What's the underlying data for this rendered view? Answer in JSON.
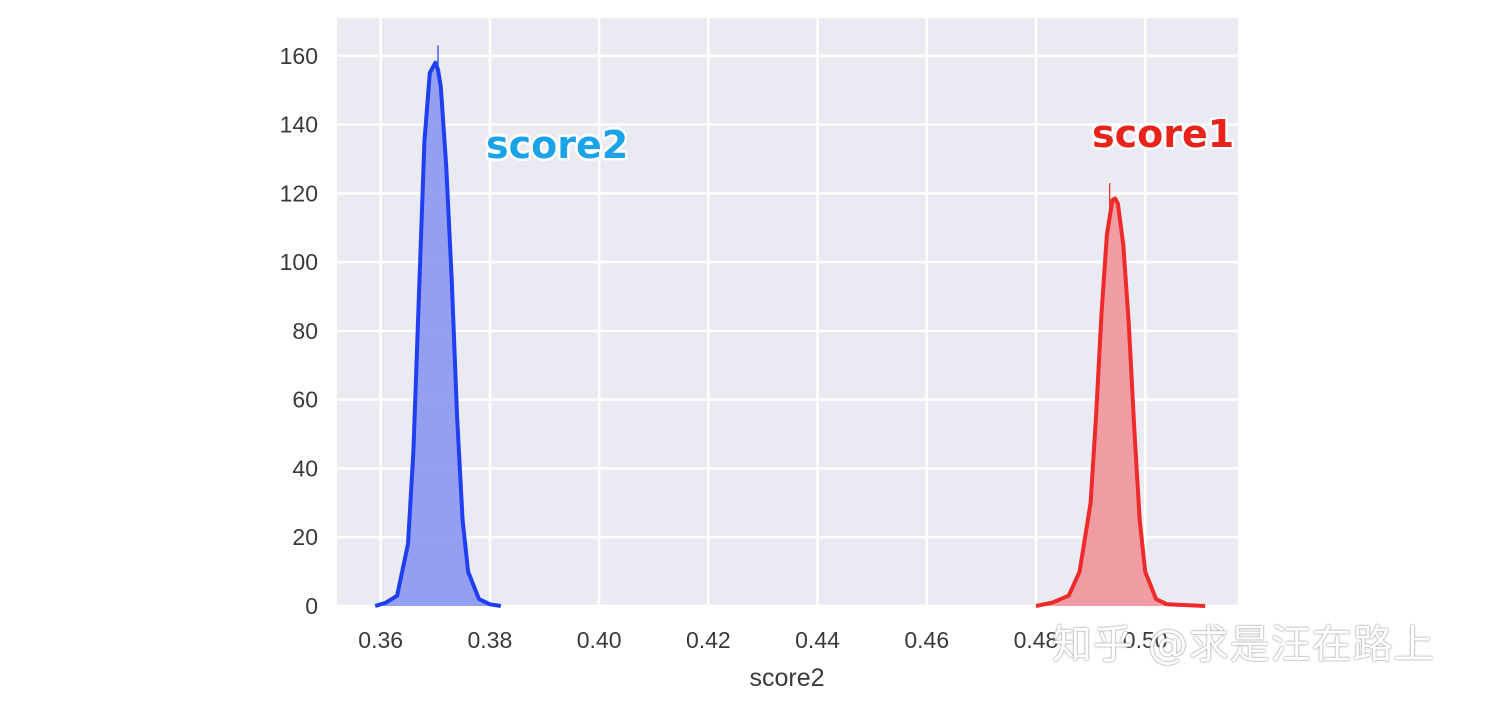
{
  "chart_data": {
    "type": "area",
    "xlabel": "score2",
    "ylabel": "",
    "xlim": [
      0.352,
      0.517
    ],
    "ylim": [
      0,
      171
    ],
    "xticks": [
      "0.36",
      "0.38",
      "0.40",
      "0.42",
      "0.44",
      "0.46",
      "0.48",
      "0.50"
    ],
    "yticks": [
      "0",
      "20",
      "40",
      "60",
      "80",
      "100",
      "120",
      "140",
      "160"
    ],
    "grid": true,
    "series": [
      {
        "name": "score2",
        "color": "#1f3ff0",
        "fill_color": "#8c97f2",
        "x": [
          0.359,
          0.361,
          0.363,
          0.365,
          0.366,
          0.367,
          0.368,
          0.369,
          0.37,
          0.3705,
          0.371,
          0.372,
          0.373,
          0.374,
          0.375,
          0.376,
          0.378,
          0.38,
          0.382
        ],
        "y": [
          0,
          1,
          3,
          18,
          45,
          90,
          135,
          155,
          158,
          156,
          151,
          128,
          95,
          55,
          25,
          10,
          2,
          0.5,
          0
        ],
        "peak_bin": {
          "x": 0.3705,
          "y": 163
        }
      },
      {
        "name": "score1",
        "color": "#ee2a2a",
        "fill_color": "#f0949a",
        "x": [
          0.48,
          0.483,
          0.486,
          0.488,
          0.49,
          0.491,
          0.492,
          0.493,
          0.494,
          0.4945,
          0.495,
          0.496,
          0.497,
          0.498,
          0.499,
          0.5,
          0.502,
          0.504,
          0.511
        ],
        "y": [
          0,
          1,
          3,
          10,
          30,
          55,
          85,
          108,
          118,
          118.5,
          117,
          105,
          82,
          52,
          25,
          10,
          2,
          0.5,
          0
        ],
        "peak_bin": {
          "x": 0.4935,
          "y": 123
        }
      }
    ],
    "annotations": [
      {
        "text": "score2",
        "color": "#1aa3e8"
      },
      {
        "text": "score1",
        "color": "#e8231c"
      }
    ]
  },
  "watermark": "知乎 @求是汪在路上"
}
